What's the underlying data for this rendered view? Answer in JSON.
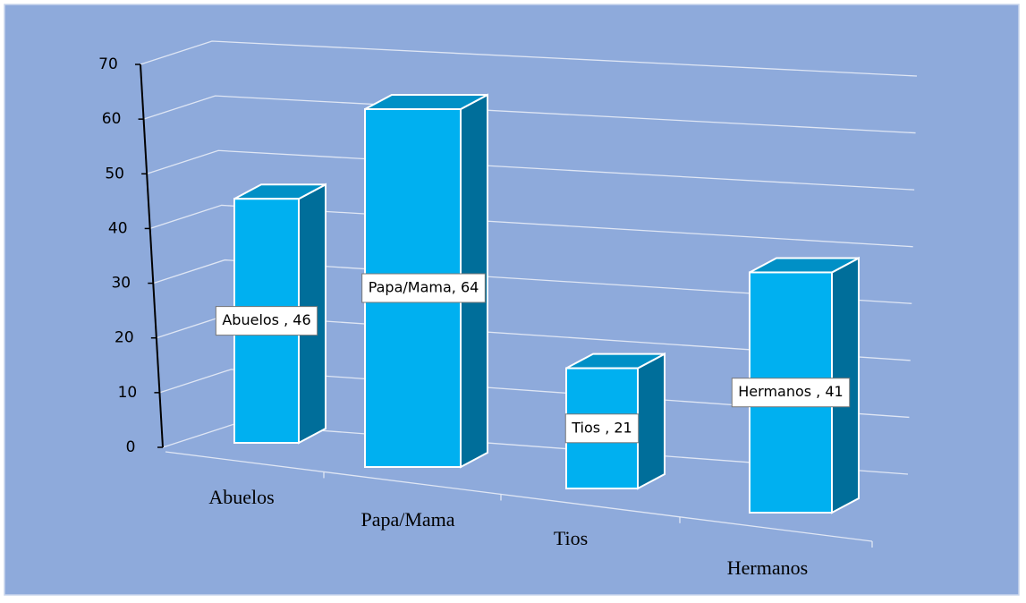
{
  "chart_data": {
    "type": "bar3d",
    "categories": [
      "Abuelos",
      "Papa/Mama",
      "Tios",
      "Hermanos"
    ],
    "values": [
      46,
      64,
      21,
      41
    ],
    "value_labels": [
      "Abuelos , 46",
      "Papa/Mama, 64",
      "Tios , 21",
      "Hermanos , 41"
    ],
    "color": "#00b0f0",
    "ylim": [
      0,
      70
    ],
    "yticks": [
      0,
      10,
      20,
      30,
      40,
      50,
      60,
      70
    ],
    "grid": true
  }
}
